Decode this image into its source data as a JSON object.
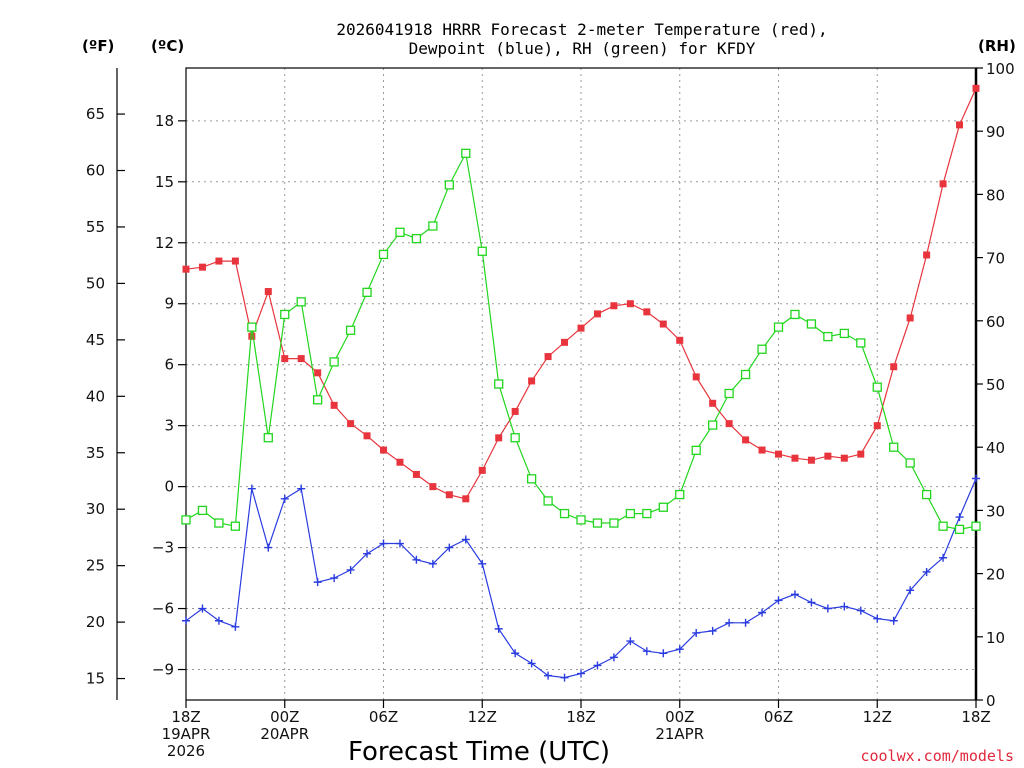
{
  "title_line1": "2026041918 HRRR Forecast 2-meter Temperature (red),",
  "title_line2": "Dewpoint (blue), RH (green) for KFDY",
  "credit": "coolwx.com/models",
  "colors": {
    "temperature": "#e8343c",
    "dewpoint": "#2a3ce0",
    "rh": "#22d61e",
    "axis": "#000000",
    "grid": "#9a9a9a"
  },
  "chart_data": {
    "type": "line",
    "xlabel": "Forecast Time (UTC)",
    "x_hours": [
      0,
      1,
      2,
      3,
      4,
      5,
      6,
      7,
      8,
      9,
      10,
      11,
      12,
      13,
      14,
      15,
      16,
      17,
      18,
      19,
      20,
      21,
      22,
      23,
      24,
      25,
      26,
      27,
      28,
      29,
      30,
      31,
      32,
      33,
      34,
      35,
      36,
      37,
      38,
      39,
      40,
      41,
      42,
      43,
      44,
      45,
      46,
      47,
      48
    ],
    "xlim": [
      0,
      48
    ],
    "x_ticks": [
      {
        "hour": 0,
        "lines": [
          "18Z",
          "19APR",
          "2026"
        ]
      },
      {
        "hour": 6,
        "lines": [
          "00Z",
          "20APR"
        ]
      },
      {
        "hour": 12,
        "lines": [
          "06Z"
        ]
      },
      {
        "hour": 18,
        "lines": [
          "12Z"
        ]
      },
      {
        "hour": 24,
        "lines": [
          "18Z"
        ]
      },
      {
        "hour": 30,
        "lines": [
          "00Z",
          "21APR"
        ]
      },
      {
        "hour": 36,
        "lines": [
          "06Z"
        ]
      },
      {
        "hour": 42,
        "lines": [
          "12Z"
        ]
      },
      {
        "hour": 48,
        "lines": [
          "18Z"
        ]
      }
    ],
    "axes": {
      "celsius": {
        "label": "(ºC)",
        "ylim": [
          -10.5,
          20.6
        ],
        "ticks": [
          "18",
          "15",
          "12",
          "9",
          "6",
          "3",
          "0",
          "−3",
          "−6",
          "−9"
        ],
        "tick_values": [
          18,
          15,
          12,
          9,
          6,
          3,
          0,
          -3,
          -6,
          -9
        ]
      },
      "fahrenheit": {
        "label": "(ºF)",
        "ticks": [
          "65",
          "60",
          "55",
          "50",
          "45",
          "40",
          "35",
          "30",
          "25",
          "20",
          "15"
        ],
        "tick_values": [
          65,
          60,
          55,
          50,
          45,
          40,
          35,
          30,
          25,
          20,
          15
        ]
      },
      "rh": {
        "label": "(RH)",
        "ylim": [
          0,
          100
        ],
        "ticks": [
          "100",
          "90",
          "80",
          "70",
          "60",
          "50",
          "40",
          "30",
          "20",
          "10",
          "0"
        ],
        "tick_values": [
          100,
          90,
          80,
          70,
          60,
          50,
          40,
          30,
          20,
          10,
          0
        ]
      }
    },
    "series": [
      {
        "name": "Temperature",
        "unit": "C",
        "marker": "filled-square",
        "values": [
          10.7,
          10.8,
          11.1,
          11.1,
          7.4,
          9.6,
          6.3,
          6.3,
          5.6,
          4.0,
          3.1,
          2.5,
          1.8,
          1.2,
          0.6,
          0.0,
          -0.4,
          -0.6,
          0.8,
          2.4,
          3.7,
          5.2,
          6.4,
          7.1,
          7.8,
          8.5,
          8.9,
          9.0,
          8.6,
          8.0,
          7.2,
          5.4,
          4.1,
          3.1,
          2.3,
          1.8,
          1.6,
          1.4,
          1.3,
          1.5,
          1.4,
          1.6,
          3.0,
          5.9,
          8.3,
          11.4,
          14.9,
          17.8,
          19.6
        ]
      },
      {
        "name": "Dewpoint",
        "unit": "C",
        "marker": "plus",
        "values": [
          -6.6,
          -6.0,
          -6.6,
          -6.9,
          -0.1,
          -3.0,
          -0.6,
          -0.1,
          -4.7,
          -4.5,
          -4.1,
          -3.3,
          -2.8,
          -2.8,
          -3.6,
          -3.8,
          -3.0,
          -2.6,
          -3.8,
          -7.0,
          -8.2,
          -8.7,
          -9.3,
          -9.4,
          -9.2,
          -8.8,
          -8.4,
          -7.6,
          -8.1,
          -8.2,
          -8.0,
          -7.2,
          -7.1,
          -6.7,
          -6.7,
          -6.2,
          -5.6,
          -5.3,
          -5.7,
          -6.0,
          -5.9,
          -6.1,
          -6.5,
          -6.6,
          -5.1,
          -4.2,
          -3.5,
          -1.5,
          0.4
        ]
      },
      {
        "name": "RH",
        "unit": "%",
        "marker": "open-square",
        "values": [
          28.5,
          30,
          28,
          27.5,
          59,
          41.5,
          61,
          63,
          47.5,
          53.5,
          58.5,
          64.5,
          70.5,
          74,
          73,
          75,
          81.5,
          86.5,
          71,
          50,
          41.5,
          35,
          31.5,
          29.5,
          28.5,
          28,
          28,
          29.5,
          29.5,
          30.5,
          32.5,
          39.5,
          43.5,
          48.5,
          51.5,
          55.5,
          59,
          61,
          59.5,
          57.5,
          58,
          56.5,
          49.5,
          40,
          37.5,
          32.5,
          27.5,
          27,
          27.5
        ]
      }
    ]
  }
}
